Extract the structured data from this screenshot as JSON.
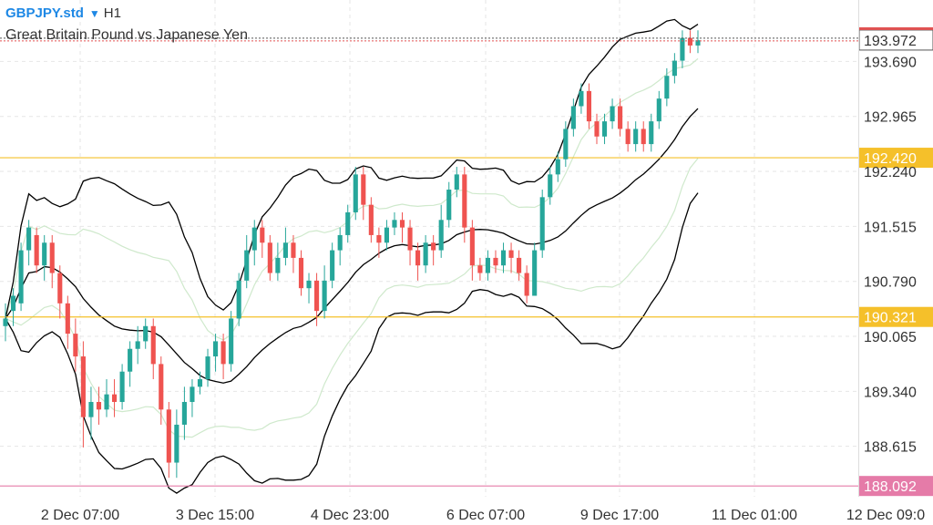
{
  "header": {
    "symbol": "GBPJPY.std",
    "timeframe": "H1",
    "description": "Great Britain Pound vs Japanese Yen"
  },
  "chart_data": {
    "type": "candlestick",
    "ylim": [
      187.95,
      194.5
    ],
    "y_ticks": [
      193.69,
      192.965,
      192.24,
      191.515,
      190.79,
      190.065,
      189.34,
      188.615
    ],
    "x_ticks": [
      "2 Dec 07:00",
      "3 Dec 15:00",
      "4 Dec 23:00",
      "6 Dec 07:00",
      "9 Dec 17:00",
      "11 Dec 01:00",
      "12 Dec 09:0"
    ],
    "current_price": 193.972,
    "horizontal_lines": [
      {
        "value": 192.42,
        "label": "192.420",
        "color": "#f5c02a"
      },
      {
        "value": 190.321,
        "label": "190.321",
        "color": "#f5c02a"
      },
      {
        "value": 188.092,
        "label": "188.092",
        "color": "#e57ba8"
      }
    ],
    "colors": {
      "up": "#26a69a",
      "down": "#ef5350",
      "current": "#e15252",
      "band_inner": "#cfe9cc",
      "band_outer": "#000000"
    },
    "candles": [
      [
        190.2,
        190.3,
        190.0,
        190.5
      ],
      [
        190.4,
        190.6,
        190.2,
        190.7
      ],
      [
        190.5,
        191.2,
        190.4,
        191.3
      ],
      [
        191.2,
        191.5,
        191.0,
        191.6
      ],
      [
        191.4,
        191.0,
        190.9,
        191.5
      ],
      [
        191.0,
        191.3,
        190.8,
        191.4
      ],
      [
        191.3,
        190.9,
        190.7,
        191.4
      ],
      [
        190.9,
        190.5,
        190.3,
        191.0
      ],
      [
        190.5,
        190.1,
        189.9,
        190.6
      ],
      [
        190.1,
        189.8,
        189.6,
        190.3
      ],
      [
        189.8,
        189.0,
        188.6,
        190.0
      ],
      [
        189.0,
        189.2,
        188.7,
        189.4
      ],
      [
        189.2,
        189.1,
        188.9,
        189.4
      ],
      [
        189.1,
        189.3,
        189.0,
        189.5
      ],
      [
        189.3,
        189.2,
        189.0,
        189.5
      ],
      [
        189.2,
        189.6,
        189.1,
        189.7
      ],
      [
        189.6,
        189.9,
        189.4,
        190.0
      ],
      [
        189.9,
        190.0,
        189.7,
        190.2
      ],
      [
        190.0,
        190.2,
        189.9,
        190.3
      ],
      [
        190.2,
        189.7,
        189.5,
        190.3
      ],
      [
        189.7,
        189.1,
        188.9,
        189.8
      ],
      [
        189.1,
        188.4,
        188.2,
        189.2
      ],
      [
        188.4,
        188.9,
        188.2,
        189.1
      ],
      [
        188.9,
        189.2,
        188.7,
        189.4
      ],
      [
        189.2,
        189.4,
        189.0,
        189.5
      ],
      [
        189.4,
        189.5,
        189.3,
        189.6
      ],
      [
        189.5,
        189.8,
        189.4,
        189.9
      ],
      [
        189.8,
        190.0,
        189.6,
        190.1
      ],
      [
        190.0,
        189.7,
        189.5,
        190.1
      ],
      [
        189.7,
        190.3,
        189.6,
        190.4
      ],
      [
        190.3,
        190.8,
        190.2,
        190.9
      ],
      [
        190.8,
        191.2,
        190.7,
        191.4
      ],
      [
        191.2,
        191.5,
        191.0,
        191.6
      ],
      [
        191.5,
        191.3,
        191.1,
        191.6
      ],
      [
        191.3,
        190.9,
        190.8,
        191.4
      ],
      [
        190.9,
        191.1,
        190.8,
        191.3
      ],
      [
        191.1,
        191.3,
        191.0,
        191.5
      ],
      [
        191.3,
        191.1,
        190.9,
        191.4
      ],
      [
        191.1,
        190.7,
        190.6,
        191.2
      ],
      [
        190.7,
        190.8,
        190.5,
        190.9
      ],
      [
        190.8,
        190.4,
        190.2,
        190.9
      ],
      [
        190.4,
        190.8,
        190.3,
        191.0
      ],
      [
        190.8,
        191.2,
        190.7,
        191.3
      ],
      [
        191.2,
        191.4,
        191.0,
        191.5
      ],
      [
        191.4,
        191.7,
        191.3,
        191.8
      ],
      [
        191.7,
        192.2,
        191.6,
        192.3
      ],
      [
        192.2,
        191.8,
        191.6,
        192.3
      ],
      [
        191.8,
        191.4,
        191.3,
        191.9
      ],
      [
        191.4,
        191.3,
        191.1,
        191.5
      ],
      [
        191.3,
        191.5,
        191.2,
        191.6
      ],
      [
        191.5,
        191.6,
        191.4,
        191.7
      ],
      [
        191.6,
        191.5,
        191.3,
        191.7
      ],
      [
        191.5,
        191.2,
        191.0,
        191.6
      ],
      [
        191.2,
        191.0,
        190.8,
        191.3
      ],
      [
        191.0,
        191.3,
        190.9,
        191.4
      ],
      [
        191.3,
        191.2,
        191.0,
        191.4
      ],
      [
        191.2,
        191.6,
        191.1,
        191.8
      ],
      [
        191.6,
        192.0,
        191.5,
        192.1
      ],
      [
        192.0,
        192.2,
        191.9,
        192.3
      ],
      [
        192.2,
        191.5,
        191.3,
        192.3
      ],
      [
        191.5,
        191.0,
        190.8,
        191.6
      ],
      [
        191.0,
        190.9,
        190.8,
        191.1
      ],
      [
        190.9,
        191.1,
        190.8,
        191.2
      ],
      [
        191.1,
        191.0,
        190.9,
        191.2
      ],
      [
        191.0,
        191.2,
        190.9,
        191.3
      ],
      [
        191.2,
        191.1,
        190.9,
        191.3
      ],
      [
        191.1,
        190.9,
        190.8,
        191.2
      ],
      [
        190.9,
        190.6,
        190.5,
        191.0
      ],
      [
        190.6,
        191.2,
        190.6,
        191.3
      ],
      [
        191.2,
        191.9,
        191.1,
        192.0
      ],
      [
        191.9,
        192.2,
        191.8,
        192.3
      ],
      [
        192.2,
        192.4,
        192.1,
        192.5
      ],
      [
        192.4,
        192.8,
        192.3,
        192.9
      ],
      [
        192.8,
        193.1,
        192.7,
        193.2
      ],
      [
        193.1,
        193.3,
        193.0,
        193.4
      ],
      [
        193.3,
        192.9,
        192.8,
        193.4
      ],
      [
        192.9,
        192.7,
        192.6,
        193.0
      ],
      [
        192.7,
        192.9,
        192.6,
        193.0
      ],
      [
        192.9,
        193.1,
        192.8,
        193.2
      ],
      [
        193.1,
        192.8,
        192.7,
        193.2
      ],
      [
        192.8,
        192.6,
        192.5,
        192.9
      ],
      [
        192.6,
        192.8,
        192.5,
        192.9
      ],
      [
        192.8,
        192.6,
        192.5,
        192.9
      ],
      [
        192.6,
        192.9,
        192.5,
        193.0
      ],
      [
        192.9,
        193.2,
        192.8,
        193.3
      ],
      [
        193.2,
        193.5,
        193.1,
        193.6
      ],
      [
        193.5,
        193.7,
        193.4,
        193.8
      ],
      [
        193.7,
        194.0,
        193.6,
        194.1
      ],
      [
        194.0,
        193.9,
        193.8,
        194.1
      ],
      [
        193.9,
        193.97,
        193.8,
        194.1
      ]
    ]
  }
}
